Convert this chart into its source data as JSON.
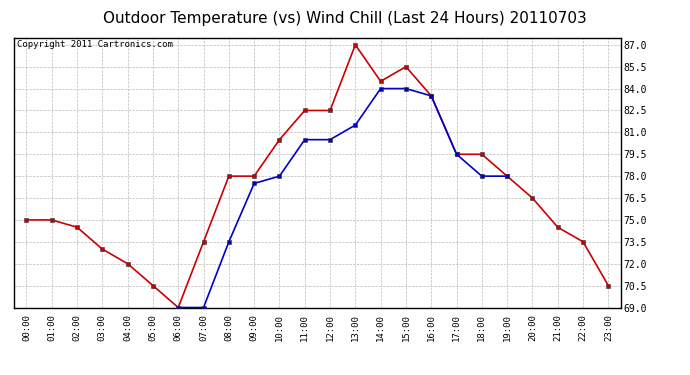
{
  "title": "Outdoor Temperature (vs) Wind Chill (Last 24 Hours) 20110703",
  "copyright": "Copyright 2011 Cartronics.com",
  "hours": [
    "00:00",
    "01:00",
    "02:00",
    "03:00",
    "04:00",
    "05:00",
    "06:00",
    "07:00",
    "08:00",
    "09:00",
    "10:00",
    "11:00",
    "12:00",
    "13:00",
    "14:00",
    "15:00",
    "16:00",
    "17:00",
    "18:00",
    "19:00",
    "20:00",
    "21:00",
    "22:00",
    "23:00"
  ],
  "outdoor_temp": [
    75.0,
    75.0,
    74.5,
    73.0,
    72.0,
    70.5,
    69.0,
    73.5,
    78.0,
    78.0,
    80.5,
    82.5,
    82.5,
    87.0,
    84.5,
    85.5,
    83.5,
    79.5,
    79.5,
    78.0,
    76.5,
    74.5,
    73.5,
    70.5
  ],
  "wind_chill": [
    null,
    null,
    null,
    null,
    null,
    null,
    69.0,
    69.0,
    73.5,
    77.5,
    78.0,
    80.5,
    80.5,
    81.5,
    84.0,
    84.0,
    83.5,
    79.5,
    78.0,
    78.0,
    null,
    null,
    null,
    null
  ],
  "temp_color": "#cc0000",
  "wind_color": "#0000cc",
  "background_color": "#ffffff",
  "plot_bg_color": "#ffffff",
  "grid_color": "#bbbbbb",
  "ylim": [
    69.0,
    87.5
  ],
  "ytick_values": [
    69.0,
    70.5,
    72.0,
    73.5,
    75.0,
    76.5,
    78.0,
    79.5,
    81.0,
    82.5,
    84.0,
    85.5,
    87.0
  ],
  "title_fontsize": 11,
  "copyright_fontsize": 6.5,
  "markersize": 3,
  "linewidth": 1.2
}
